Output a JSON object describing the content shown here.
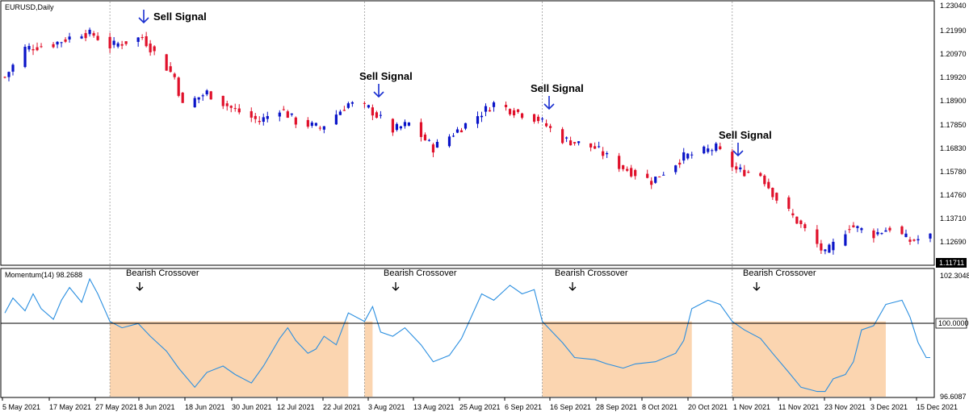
{
  "header": {
    "symbol_label": "EURUSD,Daily"
  },
  "indicator": {
    "label": "Momentum(14) 98.2688"
  },
  "price_axis": {
    "ticks": [
      "1.23040",
      "1.21990",
      "1.20970",
      "1.19920",
      "1.18900",
      "1.17850",
      "1.16830",
      "1.15780",
      "1.14760",
      "1.13710",
      "1.12690"
    ],
    "current_price": "1.11711"
  },
  "momentum_axis": {
    "ticks": [
      "102.3048",
      "100.0000",
      "96.6087"
    ]
  },
  "time_axis": {
    "labels": [
      "5 May 2021",
      "17 May 2021",
      "27 May 2021",
      "8 Jun 2021",
      "18 Jun 2021",
      "30 Jun 2021",
      "12 Jul 2021",
      "22 Jul 2021",
      "3 Aug 2021",
      "13 Aug 2021",
      "25 Aug 2021",
      "6 Sep 2021",
      "16 Sep 2021",
      "28 Sep 2021",
      "8 Oct 2021",
      "20 Oct 2021",
      "1 Nov 2021",
      "11 Nov 2021",
      "23 Nov 2021",
      "3 Dec 2021",
      "15 Dec 2021"
    ]
  },
  "annotations": {
    "sell_signals": [
      "Sell Signal",
      "Sell Signal",
      "Sell Signal",
      "Sell Signal"
    ],
    "bearish_crossovers": [
      "Bearish Crossover",
      "Bearish Crossover",
      "Bearish Crossover",
      "Bearish Crossover"
    ]
  },
  "colors": {
    "bull": "#0a14c8",
    "bear": "#e0102a",
    "momentum_line": "#2b8fe0",
    "shade": "#fbd5b0",
    "signal_arrow": "#1a2fd0"
  },
  "chart_data": [
    {
      "type": "candlestick",
      "title": "EURUSD,Daily",
      "ylim": [
        1.1165,
        1.233
      ],
      "x_range": [
        "2021-05-05",
        "2021-12-20"
      ],
      "sell_signal_dates": [
        "2021-06-04",
        "2021-08-04",
        "2021-09-14",
        "2021-11-02"
      ],
      "crossover_dates": [
        "2021-05-31",
        "2021-08-02",
        "2021-09-15",
        "2021-11-01"
      ],
      "series": [
        {
          "name": "close",
          "values": [
            {
              "x": "2021-05-05",
              "y": 1.2
            },
            {
              "x": "2021-05-10",
              "y": 1.213
            },
            {
              "x": "2021-05-17",
              "y": 1.215
            },
            {
              "x": "2021-05-24",
              "y": 1.22
            },
            {
              "x": "2021-05-27",
              "y": 1.219
            },
            {
              "x": "2021-05-31",
              "y": 1.214
            },
            {
              "x": "2021-06-08",
              "y": 1.218
            },
            {
              "x": "2021-06-11",
              "y": 1.211
            },
            {
              "x": "2021-06-16",
              "y": 1.2
            },
            {
              "x": "2021-06-18",
              "y": 1.187
            },
            {
              "x": "2021-06-24",
              "y": 1.193
            },
            {
              "x": "2021-06-30",
              "y": 1.186
            },
            {
              "x": "2021-07-07",
              "y": 1.18
            },
            {
              "x": "2021-07-12",
              "y": 1.186
            },
            {
              "x": "2021-07-16",
              "y": 1.18
            },
            {
              "x": "2021-07-22",
              "y": 1.177
            },
            {
              "x": "2021-07-29",
              "y": 1.188
            },
            {
              "x": "2021-08-03",
              "y": 1.186
            },
            {
              "x": "2021-08-09",
              "y": 1.176
            },
            {
              "x": "2021-08-13",
              "y": 1.179
            },
            {
              "x": "2021-08-19",
              "y": 1.168
            },
            {
              "x": "2021-08-25",
              "y": 1.176
            },
            {
              "x": "2021-09-03",
              "y": 1.188
            },
            {
              "x": "2021-09-06",
              "y": 1.186
            },
            {
              "x": "2021-09-14",
              "y": 1.181
            },
            {
              "x": "2021-09-20",
              "y": 1.172
            },
            {
              "x": "2021-09-28",
              "y": 1.168
            },
            {
              "x": "2021-10-04",
              "y": 1.16
            },
            {
              "x": "2021-10-12",
              "y": 1.153
            },
            {
              "x": "2021-10-20",
              "y": 1.164
            },
            {
              "x": "2021-10-28",
              "y": 1.168
            },
            {
              "x": "2021-11-02",
              "y": 1.158
            },
            {
              "x": "2021-11-08",
              "y": 1.156
            },
            {
              "x": "2021-11-12",
              "y": 1.145
            },
            {
              "x": "2021-11-18",
              "y": 1.133
            },
            {
              "x": "2021-11-24",
              "y": 1.12
            },
            {
              "x": "2021-11-30",
              "y": 1.133
            },
            {
              "x": "2021-12-06",
              "y": 1.129
            },
            {
              "x": "2021-12-10",
              "y": 1.132
            },
            {
              "x": "2021-12-15",
              "y": 1.126
            },
            {
              "x": "2021-12-20",
              "y": 1.128
            }
          ]
        }
      ]
    },
    {
      "type": "line",
      "title": "Momentum(14) 98.2688",
      "ylim": [
        96.6087,
        102.3048
      ],
      "baseline": 100.0,
      "series": [
        {
          "name": "Momentum(14)",
          "values": [
            {
              "x": "2021-05-05",
              "y": 100.4
            },
            {
              "x": "2021-05-07",
              "y": 101.1
            },
            {
              "x": "2021-05-10",
              "y": 100.5
            },
            {
              "x": "2021-05-12",
              "y": 101.3
            },
            {
              "x": "2021-05-14",
              "y": 100.6
            },
            {
              "x": "2021-05-17",
              "y": 100.1
            },
            {
              "x": "2021-05-19",
              "y": 101.0
            },
            {
              "x": "2021-05-21",
              "y": 101.6
            },
            {
              "x": "2021-05-24",
              "y": 100.9
            },
            {
              "x": "2021-05-26",
              "y": 102.0
            },
            {
              "x": "2021-05-28",
              "y": 101.3
            },
            {
              "x": "2021-05-31",
              "y": 100.0
            },
            {
              "x": "2021-06-03",
              "y": 99.7
            },
            {
              "x": "2021-06-07",
              "y": 99.9
            },
            {
              "x": "2021-06-10",
              "y": 99.3
            },
            {
              "x": "2021-06-14",
              "y": 98.6
            },
            {
              "x": "2021-06-17",
              "y": 97.8
            },
            {
              "x": "2021-06-21",
              "y": 96.9
            },
            {
              "x": "2021-06-24",
              "y": 97.6
            },
            {
              "x": "2021-06-28",
              "y": 97.9
            },
            {
              "x": "2021-07-01",
              "y": 97.5
            },
            {
              "x": "2021-07-05",
              "y": 97.1
            },
            {
              "x": "2021-07-08",
              "y": 97.9
            },
            {
              "x": "2021-07-12",
              "y": 99.2
            },
            {
              "x": "2021-07-14",
              "y": 99.7
            },
            {
              "x": "2021-07-16",
              "y": 99.1
            },
            {
              "x": "2021-07-19",
              "y": 98.5
            },
            {
              "x": "2021-07-21",
              "y": 98.7
            },
            {
              "x": "2021-07-23",
              "y": 99.3
            },
            {
              "x": "2021-07-26",
              "y": 98.9
            },
            {
              "x": "2021-07-29",
              "y": 100.4
            },
            {
              "x": "2021-08-02",
              "y": 100.0
            },
            {
              "x": "2021-08-04",
              "y": 100.7
            },
            {
              "x": "2021-08-06",
              "y": 99.5
            },
            {
              "x": "2021-08-09",
              "y": 99.3
            },
            {
              "x": "2021-08-12",
              "y": 99.7
            },
            {
              "x": "2021-08-16",
              "y": 98.9
            },
            {
              "x": "2021-08-19",
              "y": 98.1
            },
            {
              "x": "2021-08-23",
              "y": 98.4
            },
            {
              "x": "2021-08-26",
              "y": 99.2
            },
            {
              "x": "2021-08-31",
              "y": 101.3
            },
            {
              "x": "2021-09-03",
              "y": 101.0
            },
            {
              "x": "2021-09-07",
              "y": 101.7
            },
            {
              "x": "2021-09-10",
              "y": 101.3
            },
            {
              "x": "2021-09-13",
              "y": 101.5
            },
            {
              "x": "2021-09-15",
              "y": 100.0
            },
            {
              "x": "2021-09-17",
              "y": 99.6
            },
            {
              "x": "2021-09-20",
              "y": 99.0
            },
            {
              "x": "2021-09-23",
              "y": 98.3
            },
            {
              "x": "2021-09-28",
              "y": 98.2
            },
            {
              "x": "2021-10-01",
              "y": 98.0
            },
            {
              "x": "2021-10-05",
              "y": 97.8
            },
            {
              "x": "2021-10-08",
              "y": 98.0
            },
            {
              "x": "2021-10-13",
              "y": 98.1
            },
            {
              "x": "2021-10-18",
              "y": 98.5
            },
            {
              "x": "2021-10-20",
              "y": 99.1
            },
            {
              "x": "2021-10-22",
              "y": 100.6
            },
            {
              "x": "2021-10-26",
              "y": 101.0
            },
            {
              "x": "2021-10-29",
              "y": 100.8
            },
            {
              "x": "2021-11-01",
              "y": 100.0
            },
            {
              "x": "2021-11-04",
              "y": 99.6
            },
            {
              "x": "2021-11-08",
              "y": 99.2
            },
            {
              "x": "2021-11-11",
              "y": 98.5
            },
            {
              "x": "2021-11-15",
              "y": 97.6
            },
            {
              "x": "2021-11-18",
              "y": 96.9
            },
            {
              "x": "2021-11-22",
              "y": 96.7
            },
            {
              "x": "2021-11-24",
              "y": 96.7
            },
            {
              "x": "2021-11-26",
              "y": 97.3
            },
            {
              "x": "2021-11-29",
              "y": 97.5
            },
            {
              "x": "2021-12-01",
              "y": 98.1
            },
            {
              "x": "2021-12-03",
              "y": 99.6
            },
            {
              "x": "2021-12-06",
              "y": 99.8
            },
            {
              "x": "2021-12-09",
              "y": 100.8
            },
            {
              "x": "2021-12-11",
              "y": 100.9
            },
            {
              "x": "2021-12-13",
              "y": 101.0
            },
            {
              "x": "2021-12-15",
              "y": 100.2
            },
            {
              "x": "2021-12-17",
              "y": 99.0
            },
            {
              "x": "2021-12-19",
              "y": 98.3
            },
            {
              "x": "2021-12-20",
              "y": 98.3
            }
          ]
        }
      ]
    }
  ]
}
